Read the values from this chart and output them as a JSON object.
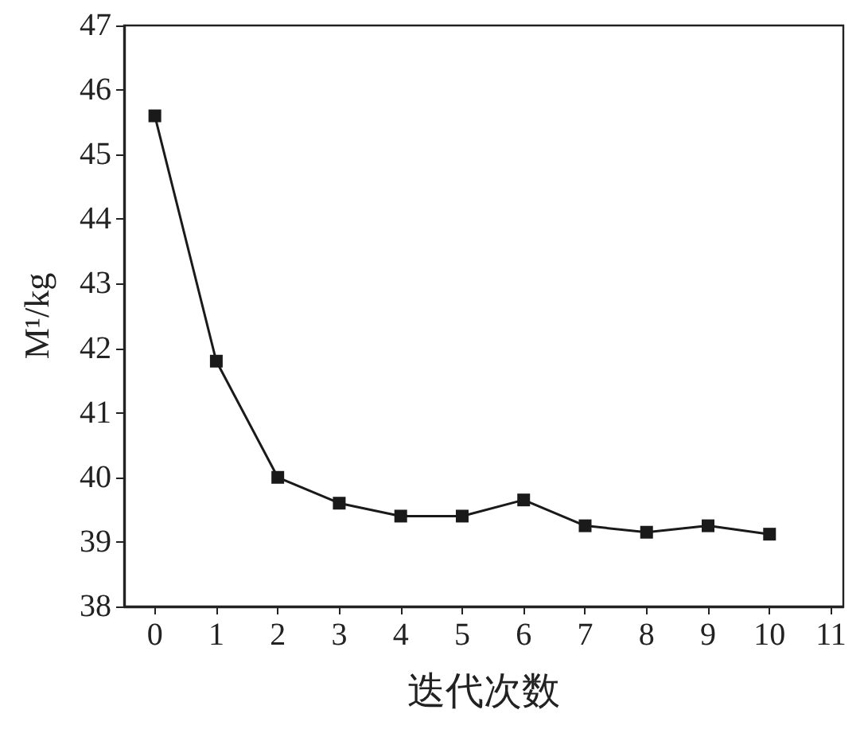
{
  "chart_data": {
    "type": "line",
    "xlabel": "迭代次数",
    "ylabel": "M¹/kg",
    "x": [
      0,
      1,
      2,
      3,
      4,
      5,
      6,
      7,
      8,
      9,
      10
    ],
    "series": [
      {
        "color": "#1a1a1a",
        "values": [
          45.6,
          41.8,
          40.0,
          39.6,
          39.4,
          39.4,
          39.65,
          39.25,
          39.15,
          39.25,
          39.12
        ]
      }
    ],
    "xlim": [
      -0.5,
      11.2
    ],
    "xticks": [
      0,
      1,
      2,
      3,
      4,
      5,
      6,
      7,
      8,
      9,
      10,
      11
    ],
    "ylim": [
      38,
      47
    ],
    "yticks": [
      38,
      39,
      40,
      41,
      42,
      43,
      44,
      45,
      46,
      47
    ],
    "grid": false,
    "marker": "square",
    "line_style": "solid"
  }
}
